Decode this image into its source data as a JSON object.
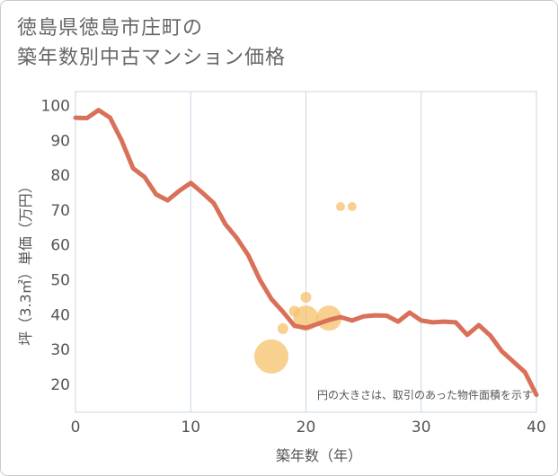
{
  "title_lines": [
    "徳島県徳島市庄町の",
    "築年数別中古マンション価格"
  ],
  "chart_data": {
    "type": "line+scatter",
    "title": "徳島県徳島市庄町の築年数別中古マンション価格",
    "xlabel": "築年数（年）",
    "ylabel": "坪（3.3㎡）単価（万円）",
    "xlim": [
      0,
      40
    ],
    "ylim": [
      12,
      104
    ],
    "xticks": [
      0,
      10,
      20,
      30,
      40
    ],
    "yticks": [
      20,
      30,
      40,
      50,
      60,
      70,
      80,
      90,
      100
    ],
    "grid_x": true,
    "grid_y": false,
    "note": "円の大きさは、取引のあった物件面積を示す",
    "line": {
      "color": "#d9705a",
      "x": [
        0,
        1,
        2,
        3,
        4,
        5,
        6,
        7,
        8,
        9,
        10,
        11,
        12,
        13,
        14,
        15,
        16,
        17,
        18,
        19,
        20,
        21,
        22,
        23,
        24,
        25,
        26,
        27,
        28,
        29,
        30,
        31,
        32,
        33,
        34,
        35,
        36,
        37,
        38,
        39,
        40
      ],
      "y": [
        96.5,
        96.4,
        98.7,
        96.5,
        90,
        82,
        79.5,
        74.5,
        72.8,
        75.5,
        77.8,
        75,
        72,
        66,
        62,
        57,
        50,
        44.5,
        40.8,
        36.8,
        36.2,
        37.3,
        38.5,
        39.3,
        38.3,
        39.5,
        39.8,
        39.7,
        38,
        40.6,
        38.3,
        37.8,
        38,
        37.8,
        34.2,
        37,
        34,
        29.5,
        26.5,
        23.5,
        17
      ]
    },
    "bubbles": {
      "color": "#f5c06a",
      "points": [
        {
          "x": 17,
          "y": 28,
          "size": 19
        },
        {
          "x": 18,
          "y": 36,
          "size": 6
        },
        {
          "x": 19,
          "y": 41,
          "size": 6
        },
        {
          "x": 20,
          "y": 45,
          "size": 6
        },
        {
          "x": 20,
          "y": 39,
          "size": 14
        },
        {
          "x": 22,
          "y": 39,
          "size": 14
        },
        {
          "x": 23,
          "y": 71,
          "size": 5
        },
        {
          "x": 24,
          "y": 71,
          "size": 5
        }
      ]
    }
  }
}
